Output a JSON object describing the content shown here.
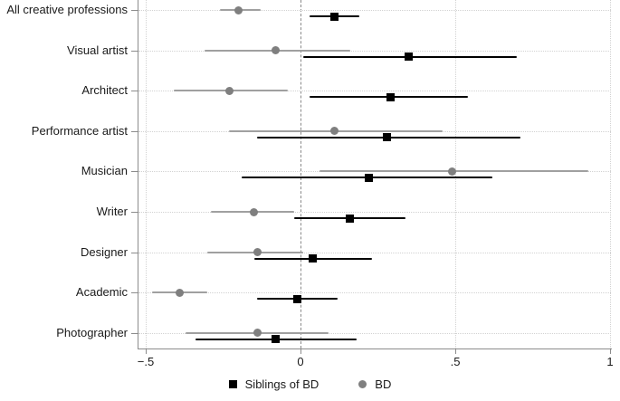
{
  "chart_data": {
    "type": "scatter",
    "subtype": "forest-plot-with-confidence-intervals",
    "title": "",
    "xlabel": "",
    "ylabel": "",
    "xlim": [
      -0.53,
      1.0
    ],
    "grid": "dotted horizontal per category; dotted vertical at -.5, .5, 1; dashed reference line at 0",
    "legend_position": "bottom-center",
    "categories": [
      "All creative professions",
      "Visual artist",
      "Architect",
      "Performance artist",
      "Musician",
      "Writer",
      "Designer",
      "Academic",
      "Photographer"
    ],
    "x_tick_labels": [
      "−.5",
      "0",
      ".5",
      "1"
    ],
    "x_ticks": [
      {
        "value": -0.5,
        "label": "−.5"
      },
      {
        "value": 0,
        "label": "0"
      },
      {
        "value": 0.5,
        "label": ".5"
      },
      {
        "value": 1,
        "label": "1"
      }
    ],
    "x_gridlines": [
      -0.5,
      0.5,
      1
    ],
    "zero_line": 0,
    "series": [
      {
        "name": "Siblings of BD",
        "marker": "square",
        "marker_color": "#000000",
        "line_color": "#000000",
        "values": [
          0.11,
          0.35,
          0.29,
          0.28,
          0.22,
          0.16,
          0.04,
          -0.01,
          -0.08
        ],
        "ci_low": [
          0.03,
          0.01,
          0.03,
          -0.14,
          -0.19,
          -0.02,
          -0.15,
          -0.14,
          -0.34
        ],
        "ci_high": [
          0.19,
          0.7,
          0.54,
          0.71,
          0.62,
          0.34,
          0.23,
          0.12,
          0.18
        ]
      },
      {
        "name": "BD",
        "marker": "circle",
        "marker_color": "#7f7f7f",
        "line_color": "#a0a0a0",
        "values": [
          -0.2,
          -0.08,
          -0.23,
          0.11,
          0.49,
          -0.15,
          -0.14,
          -0.39,
          -0.14
        ],
        "ci_low": [
          -0.26,
          -0.31,
          -0.41,
          -0.23,
          0.06,
          -0.29,
          -0.3,
          -0.48,
          -0.37
        ],
        "ci_high": [
          -0.13,
          0.16,
          -0.04,
          0.46,
          0.93,
          -0.02,
          0.01,
          -0.3,
          0.09
        ]
      }
    ],
    "colors": {
      "grid": "#d2d2d2",
      "zero_line": "#8a8a8a",
      "axis": "#8c8c8c",
      "text": "#1a1a1a",
      "background": "#ffffff"
    }
  }
}
